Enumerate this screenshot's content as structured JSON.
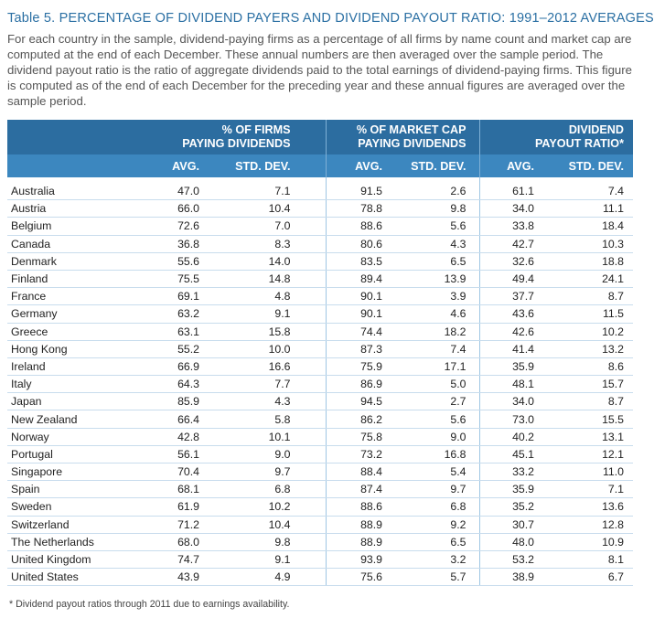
{
  "caption": {
    "label": "Table 5.",
    "title": "PERCENTAGE OF DIVIDEND PAYERS AND DIVIDEND PAYOUT RATIO: 1991–2012 AVERAGES"
  },
  "intro": "For each country in the sample, dividend-paying firms as a percentage of all firms by name count and market cap are computed at the end of each December. These annual numbers are then averaged over the sample period. The dividend payout ratio is the ratio of aggregate dividends paid to the total earnings of dividend-paying firms. This figure is computed as of the end of each December for the preceding year and these annual figures are averaged over the sample period.",
  "table": {
    "groups": [
      {
        "line1": "% OF FIRMS",
        "line2": "PAYING DIVIDENDS"
      },
      {
        "line1": "% OF MARKET CAP",
        "line2": "PAYING DIVIDENDS"
      },
      {
        "line1": "DIVIDEND",
        "line2": "PAYOUT RATIO*"
      }
    ],
    "subheaders": [
      "AVG.",
      "STD. DEV.",
      "AVG.",
      "STD. DEV.",
      "AVG.",
      "STD. DEV."
    ],
    "rows": [
      {
        "country": "Australia",
        "v": [
          "47.0",
          "7.1",
          "91.5",
          "2.6",
          "61.1",
          "7.4"
        ]
      },
      {
        "country": "Austria",
        "v": [
          "66.0",
          "10.4",
          "78.8",
          "9.8",
          "34.0",
          "11.1"
        ]
      },
      {
        "country": "Belgium",
        "v": [
          "72.6",
          "7.0",
          "88.6",
          "5.6",
          "33.8",
          "18.4"
        ]
      },
      {
        "country": "Canada",
        "v": [
          "36.8",
          "8.3",
          "80.6",
          "4.3",
          "42.7",
          "10.3"
        ]
      },
      {
        "country": "Denmark",
        "v": [
          "55.6",
          "14.0",
          "83.5",
          "6.5",
          "32.6",
          "18.8"
        ]
      },
      {
        "country": "Finland",
        "v": [
          "75.5",
          "14.8",
          "89.4",
          "13.9",
          "49.4",
          "24.1"
        ]
      },
      {
        "country": "France",
        "v": [
          "69.1",
          "4.8",
          "90.1",
          "3.9",
          "37.7",
          "8.7"
        ]
      },
      {
        "country": "Germany",
        "v": [
          "63.2",
          "9.1",
          "90.1",
          "4.6",
          "43.6",
          "11.5"
        ]
      },
      {
        "country": "Greece",
        "v": [
          "63.1",
          "15.8",
          "74.4",
          "18.2",
          "42.6",
          "10.2"
        ]
      },
      {
        "country": "Hong Kong",
        "v": [
          "55.2",
          "10.0",
          "87.3",
          "7.4",
          "41.4",
          "13.2"
        ]
      },
      {
        "country": "Ireland",
        "v": [
          "66.9",
          "16.6",
          "75.9",
          "17.1",
          "35.9",
          "8.6"
        ]
      },
      {
        "country": "Italy",
        "v": [
          "64.3",
          "7.7",
          "86.9",
          "5.0",
          "48.1",
          "15.7"
        ]
      },
      {
        "country": "Japan",
        "v": [
          "85.9",
          "4.3",
          "94.5",
          "2.7",
          "34.0",
          "8.7"
        ]
      },
      {
        "country": "New Zealand",
        "v": [
          "66.4",
          "5.8",
          "86.2",
          "5.6",
          "73.0",
          "15.5"
        ]
      },
      {
        "country": "Norway",
        "v": [
          "42.8",
          "10.1",
          "75.8",
          "9.0",
          "40.2",
          "13.1"
        ]
      },
      {
        "country": "Portugal",
        "v": [
          "56.1",
          "9.0",
          "73.2",
          "16.8",
          "45.1",
          "12.1"
        ]
      },
      {
        "country": "Singapore",
        "v": [
          "70.4",
          "9.7",
          "88.4",
          "5.4",
          "33.2",
          "11.0"
        ]
      },
      {
        "country": "Spain",
        "v": [
          "68.1",
          "6.8",
          "87.4",
          "9.7",
          "35.9",
          "7.1"
        ]
      },
      {
        "country": "Sweden",
        "v": [
          "61.9",
          "10.2",
          "88.6",
          "6.8",
          "35.2",
          "13.6"
        ]
      },
      {
        "country": "Switzerland",
        "v": [
          "71.2",
          "10.4",
          "88.9",
          "9.2",
          "30.7",
          "12.8"
        ]
      },
      {
        "country": "The Netherlands",
        "v": [
          "68.0",
          "9.8",
          "88.9",
          "6.5",
          "48.0",
          "10.9"
        ]
      },
      {
        "country": "United Kingdom",
        "v": [
          "74.7",
          "9.1",
          "93.9",
          "3.2",
          "53.2",
          "8.1"
        ]
      },
      {
        "country": "United States",
        "v": [
          "43.9",
          "4.9",
          "75.6",
          "5.7",
          "38.9",
          "6.7"
        ]
      }
    ]
  },
  "footnote": "* Dividend payout ratios through 2011 due to earnings availability."
}
